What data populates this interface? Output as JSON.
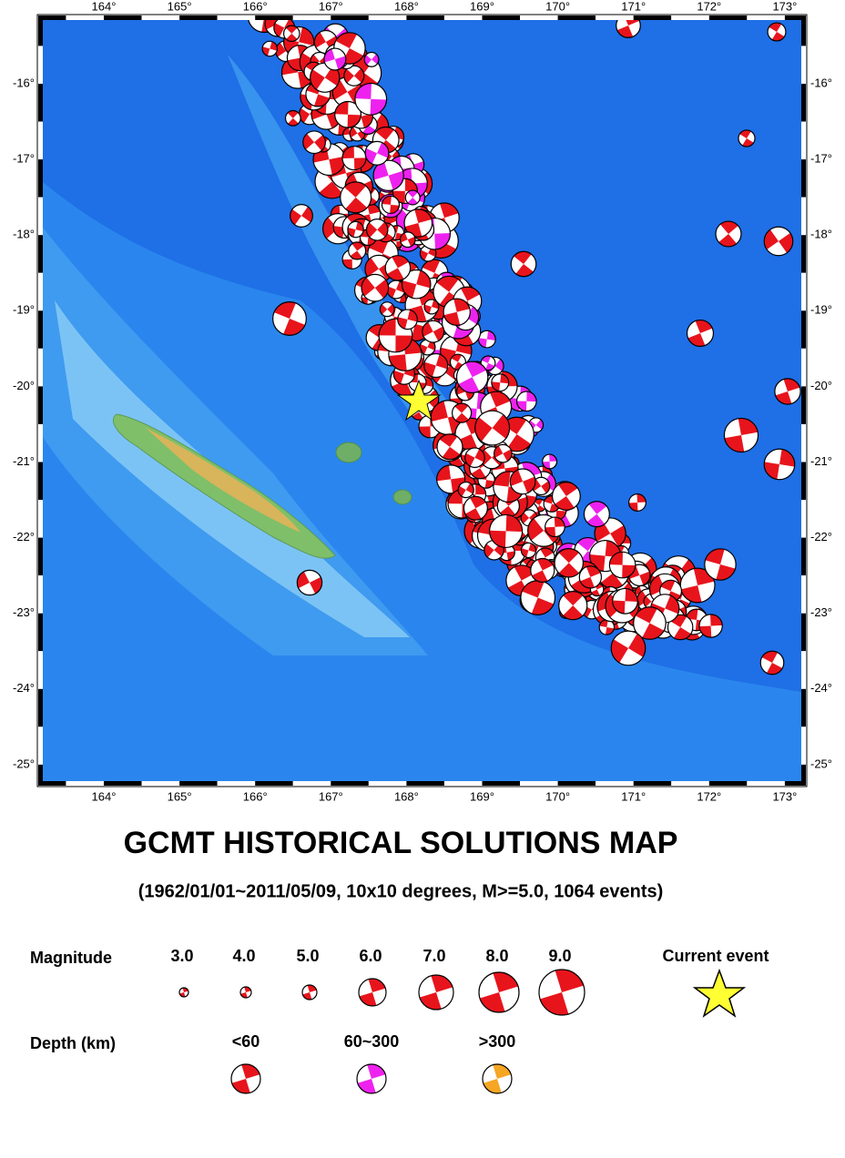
{
  "map": {
    "lon_ticks": [
      "164°",
      "165°",
      "166°",
      "167°",
      "168°",
      "169°",
      "170°",
      "171°",
      "172°",
      "173°"
    ],
    "lat_ticks": [
      "-16°",
      "-17°",
      "-18°",
      "-19°",
      "-20°",
      "-21°",
      "-22°",
      "-23°",
      "-24°",
      "-25°"
    ]
  },
  "title": "GCMT HISTORICAL SOLUTIONS MAP",
  "subtitle": "(1962/01/01~2011/05/09, 10x10 degrees, M>=5.0, 1064 events)",
  "legend": {
    "magnitude_label": "Magnitude",
    "magnitudes": [
      "3.0",
      "4.0",
      "5.0",
      "6.0",
      "7.0",
      "8.0",
      "9.0"
    ],
    "current_event": "Current event",
    "depth_label": "Depth (km)",
    "depths": [
      "<60",
      "60~300",
      ">300"
    ]
  }
}
